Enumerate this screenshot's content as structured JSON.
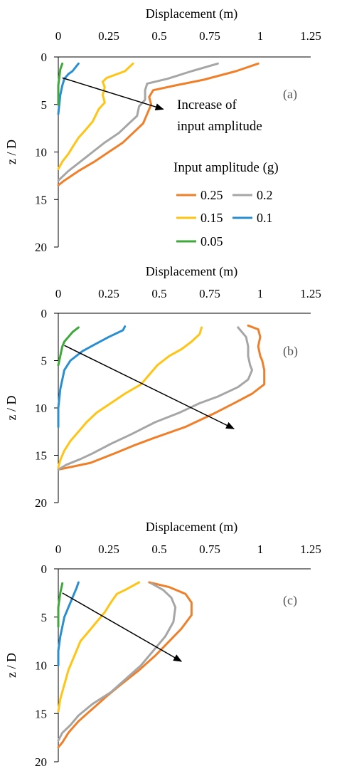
{
  "chart_data": [
    {
      "type": "line",
      "panel_label": "(a)",
      "xlabel": "Displacement (m)",
      "ylabel": "z / D",
      "xlim": [
        0,
        1.25
      ],
      "ylim": [
        0,
        20
      ],
      "y_inverted": true,
      "x_axis_position": "top",
      "xticks": [
        "0",
        "0.25",
        "0.5",
        "0.75",
        "1",
        "1.25"
      ],
      "yticks": [
        "0",
        "5",
        "10",
        "15",
        "20"
      ],
      "annotation": {
        "lines": [
          "Increase of",
          "input amplitude"
        ]
      },
      "arrow": {
        "from": [
          0.02,
          2.2
        ],
        "to": [
          0.52,
          5.5
        ]
      },
      "legend": {
        "title": "Input amplitude (g)",
        "placement": "right",
        "entries": [
          {
            "label": "0.25",
            "color": "#F07F2A"
          },
          {
            "label": "0.2",
            "color": "#A6A6A6"
          },
          {
            "label": "0.15",
            "color": "#FFC414"
          },
          {
            "label": "0.1",
            "color": "#2A8FD0"
          },
          {
            "label": "0.05",
            "color": "#3EA93A"
          }
        ]
      },
      "series": [
        {
          "name": "0.25",
          "color": "#F07F2A",
          "points": [
            [
              0.99,
              0.7
            ],
            [
              0.88,
              1.5
            ],
            [
              0.72,
              2.4
            ],
            [
              0.58,
              3.0
            ],
            [
              0.47,
              3.5
            ],
            [
              0.45,
              4.2
            ],
            [
              0.46,
              5.0
            ],
            [
              0.44,
              6.0
            ],
            [
              0.42,
              7.0
            ],
            [
              0.37,
              8.0
            ],
            [
              0.32,
              9.0
            ],
            [
              0.25,
              10.0
            ],
            [
              0.18,
              11.0
            ],
            [
              0.1,
              12.0
            ],
            [
              0.03,
              13.0
            ],
            [
              0.0,
              13.5
            ]
          ]
        },
        {
          "name": "0.2",
          "color": "#A6A6A6",
          "points": [
            [
              0.79,
              0.7
            ],
            [
              0.66,
              1.5
            ],
            [
              0.54,
              2.3
            ],
            [
              0.44,
              2.8
            ],
            [
              0.43,
              3.5
            ],
            [
              0.43,
              4.5
            ],
            [
              0.4,
              5.2
            ],
            [
              0.39,
              6.2
            ],
            [
              0.35,
              7.0
            ],
            [
              0.3,
              8.0
            ],
            [
              0.23,
              9.0
            ],
            [
              0.17,
              10.0
            ],
            [
              0.11,
              11.0
            ],
            [
              0.05,
              12.0
            ],
            [
              0.0,
              13.0
            ]
          ]
        },
        {
          "name": "0.15",
          "color": "#FFC414",
          "points": [
            [
              0.37,
              0.7
            ],
            [
              0.33,
              1.5
            ],
            [
              0.24,
              2.2
            ],
            [
              0.22,
              2.6
            ],
            [
              0.23,
              3.2
            ],
            [
              0.22,
              4.0
            ],
            [
              0.23,
              4.8
            ],
            [
              0.2,
              5.5
            ],
            [
              0.17,
              6.8
            ],
            [
              0.13,
              7.8
            ],
            [
              0.1,
              8.5
            ],
            [
              0.07,
              9.5
            ],
            [
              0.05,
              10.2
            ],
            [
              0.02,
              11.0
            ],
            [
              0.0,
              11.8
            ]
          ]
        },
        {
          "name": "0.1",
          "color": "#2A8FD0",
          "points": [
            [
              0.1,
              0.7
            ],
            [
              0.07,
              1.5
            ],
            [
              0.05,
              1.8
            ],
            [
              0.03,
              2.3
            ],
            [
              0.02,
              3.0
            ],
            [
              0.01,
              4.0
            ],
            [
              0.0,
              6.0
            ]
          ]
        },
        {
          "name": "0.05",
          "color": "#3EA93A",
          "points": [
            [
              0.02,
              0.7
            ],
            [
              0.01,
              1.3
            ],
            [
              0.0,
              3.0
            ],
            [
              0.0,
              5.0
            ]
          ]
        }
      ]
    },
    {
      "type": "line",
      "panel_label": "(b)",
      "xlabel": "Displacement (m)",
      "ylabel": "z / D",
      "xlim": [
        0,
        1.25
      ],
      "ylim": [
        0,
        20
      ],
      "y_inverted": true,
      "x_axis_position": "top",
      "xticks": [
        "0",
        "0.25",
        "0.5",
        "0.75",
        "1",
        "1.25"
      ],
      "yticks": [
        "0",
        "5",
        "10",
        "15",
        "20"
      ],
      "arrow": {
        "from": [
          0.03,
          3.4
        ],
        "to": [
          0.87,
          12.2
        ]
      },
      "series": [
        {
          "name": "0.25",
          "color": "#F07F2A",
          "points": [
            [
              0.94,
              1.3
            ],
            [
              0.99,
              1.7
            ],
            [
              1.0,
              2.5
            ],
            [
              0.99,
              3.5
            ],
            [
              1.0,
              4.5
            ],
            [
              1.01,
              5.0
            ],
            [
              1.02,
              6.0
            ],
            [
              1.02,
              7.5
            ],
            [
              0.96,
              8.5
            ],
            [
              0.87,
              9.5
            ],
            [
              0.78,
              10.5
            ],
            [
              0.63,
              12.0
            ],
            [
              0.47,
              13.2
            ],
            [
              0.37,
              14.0
            ],
            [
              0.28,
              14.8
            ],
            [
              0.16,
              15.8
            ],
            [
              0.07,
              16.2
            ],
            [
              0.0,
              16.5
            ]
          ]
        },
        {
          "name": "0.2",
          "color": "#A6A6A6",
          "points": [
            [
              0.89,
              1.5
            ],
            [
              0.93,
              2.5
            ],
            [
              0.94,
              3.5
            ],
            [
              0.94,
              4.5
            ],
            [
              0.95,
              5.5
            ],
            [
              0.96,
              6.0
            ],
            [
              0.94,
              7.0
            ],
            [
              0.89,
              7.8
            ],
            [
              0.79,
              8.8
            ],
            [
              0.7,
              9.5
            ],
            [
              0.6,
              10.5
            ],
            [
              0.48,
              11.5
            ],
            [
              0.36,
              12.8
            ],
            [
              0.26,
              13.8
            ],
            [
              0.17,
              14.8
            ],
            [
              0.11,
              15.4
            ],
            [
              0.04,
              16.0
            ],
            [
              0.0,
              16.5
            ]
          ]
        },
        {
          "name": "0.15",
          "color": "#FFC414",
          "points": [
            [
              0.71,
              1.5
            ],
            [
              0.7,
              2.2
            ],
            [
              0.66,
              3.0
            ],
            [
              0.61,
              3.8
            ],
            [
              0.55,
              4.5
            ],
            [
              0.52,
              5.0
            ],
            [
              0.49,
              5.5
            ],
            [
              0.45,
              6.5
            ],
            [
              0.41,
              7.5
            ],
            [
              0.33,
              8.5
            ],
            [
              0.26,
              9.5
            ],
            [
              0.19,
              10.5
            ],
            [
              0.14,
              11.5
            ],
            [
              0.1,
              12.5
            ],
            [
              0.06,
              13.5
            ],
            [
              0.03,
              14.5
            ],
            [
              0.01,
              15.5
            ],
            [
              0.0,
              16.3
            ]
          ]
        },
        {
          "name": "0.1",
          "color": "#2A8FD0",
          "points": [
            [
              0.33,
              1.4
            ],
            [
              0.32,
              1.8
            ],
            [
              0.25,
              2.5
            ],
            [
              0.18,
              3.3
            ],
            [
              0.12,
              4.0
            ],
            [
              0.06,
              5.0
            ],
            [
              0.03,
              6.0
            ],
            [
              0.02,
              7.0
            ],
            [
              0.01,
              8.0
            ],
            [
              0.0,
              10.0
            ],
            [
              0.0,
              12.0
            ]
          ]
        },
        {
          "name": "0.05",
          "color": "#3EA93A",
          "points": [
            [
              0.1,
              1.5
            ],
            [
              0.07,
              2.0
            ],
            [
              0.05,
              2.5
            ],
            [
              0.03,
              3.0
            ],
            [
              0.02,
              3.5
            ],
            [
              0.01,
              4.5
            ],
            [
              0.0,
              5.5
            ]
          ]
        }
      ]
    },
    {
      "type": "line",
      "panel_label": "(c)",
      "xlabel": "Displacement (m)",
      "ylabel": "z / D",
      "xlim": [
        0,
        1.25
      ],
      "ylim": [
        0,
        20
      ],
      "y_inverted": true,
      "x_axis_position": "top",
      "xticks": [
        "0",
        "0.25",
        "0.5",
        "0.75",
        "1",
        "1.25"
      ],
      "yticks": [
        "0",
        "5",
        "10",
        "15",
        "20"
      ],
      "arrow": {
        "from": [
          0.02,
          2.5
        ],
        "to": [
          0.61,
          9.6
        ]
      },
      "series": [
        {
          "name": "0.25",
          "color": "#F07F2A",
          "points": [
            [
              0.45,
              1.4
            ],
            [
              0.55,
              1.9
            ],
            [
              0.63,
              2.6
            ],
            [
              0.66,
              3.5
            ],
            [
              0.66,
              4.8
            ],
            [
              0.61,
              6.2
            ],
            [
              0.55,
              7.5
            ],
            [
              0.48,
              9.0
            ],
            [
              0.4,
              10.5
            ],
            [
              0.31,
              12.0
            ],
            [
              0.24,
              13.2
            ],
            [
              0.17,
              14.5
            ],
            [
              0.1,
              15.8
            ],
            [
              0.05,
              17.0
            ],
            [
              0.02,
              18.0
            ],
            [
              0.0,
              18.5
            ]
          ]
        },
        {
          "name": "0.2",
          "color": "#A6A6A6",
          "points": [
            [
              0.46,
              1.5
            ],
            [
              0.52,
              2.2
            ],
            [
              0.56,
              3.0
            ],
            [
              0.58,
              4.0
            ],
            [
              0.57,
              5.5
            ],
            [
              0.53,
              7.0
            ],
            [
              0.47,
              8.5
            ],
            [
              0.41,
              10.0
            ],
            [
              0.34,
              11.3
            ],
            [
              0.26,
              12.8
            ],
            [
              0.17,
              14.0
            ],
            [
              0.1,
              15.2
            ],
            [
              0.06,
              16.2
            ],
            [
              0.02,
              17.0
            ],
            [
              0.0,
              17.8
            ]
          ]
        },
        {
          "name": "0.15",
          "color": "#FFC414",
          "points": [
            [
              0.4,
              1.4
            ],
            [
              0.33,
              2.2
            ],
            [
              0.29,
              2.6
            ],
            [
              0.26,
              3.5
            ],
            [
              0.23,
              4.5
            ],
            [
              0.19,
              5.5
            ],
            [
              0.15,
              6.5
            ],
            [
              0.11,
              7.5
            ],
            [
              0.08,
              9.0
            ],
            [
              0.05,
              10.5
            ],
            [
              0.03,
              12.0
            ],
            [
              0.01,
              13.5
            ],
            [
              0.0,
              14.8
            ]
          ]
        },
        {
          "name": "0.1",
          "color": "#2A8FD0",
          "points": [
            [
              0.1,
              1.4
            ],
            [
              0.09,
              2.0
            ],
            [
              0.07,
              3.0
            ],
            [
              0.05,
              4.0
            ],
            [
              0.03,
              5.0
            ],
            [
              0.02,
              6.0
            ],
            [
              0.01,
              7.0
            ],
            [
              0.0,
              8.5
            ],
            [
              0.0,
              10.0
            ]
          ]
        },
        {
          "name": "0.05",
          "color": "#3EA93A",
          "points": [
            [
              0.02,
              1.5
            ],
            [
              0.01,
              2.5
            ],
            [
              0.0,
              4.0
            ],
            [
              0.0,
              6.0
            ]
          ]
        }
      ]
    }
  ]
}
